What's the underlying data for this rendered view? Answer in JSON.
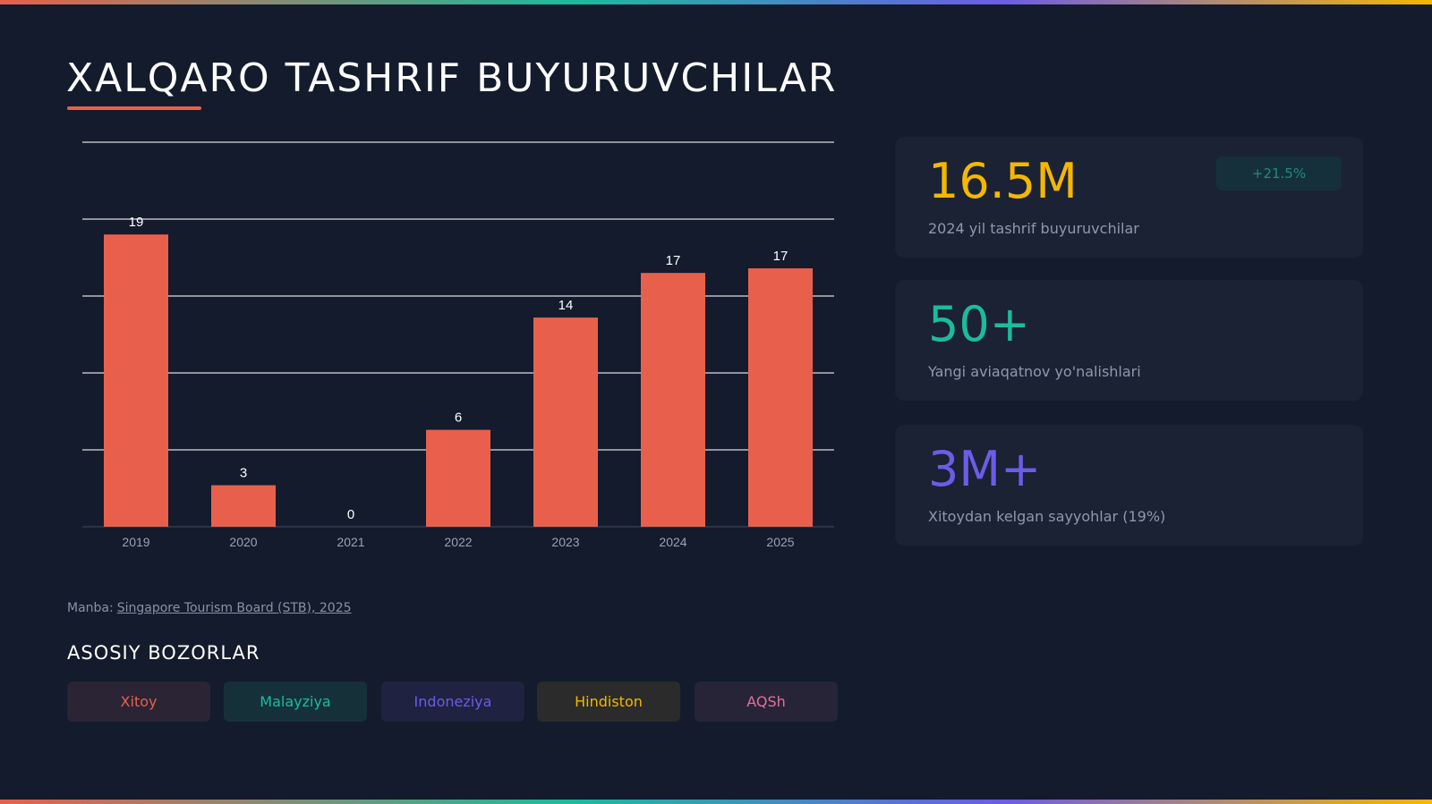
{
  "title": "XALQARO TASHRIF BUYURUVCHILAR",
  "chart_data": {
    "type": "bar",
    "categories": [
      "2019",
      "2020",
      "2021",
      "2022",
      "2023",
      "2024",
      "2025"
    ],
    "values": [
      19,
      2.7,
      0,
      6.3,
      13.6,
      16.5,
      16.8
    ],
    "value_labels": [
      "19",
      "3",
      "0",
      "6",
      "14",
      "17",
      "17"
    ],
    "color": "#e8604c",
    "ylim": [
      0,
      25
    ],
    "yticks": [
      0,
      5,
      10,
      15,
      20,
      25
    ],
    "grid": true
  },
  "stats": [
    {
      "value": "16.5M",
      "label": "2024 yil tashrif buyuruvchilar",
      "badge": "+21.5%"
    },
    {
      "value": "50+",
      "label": "Yangi aviaqatnov yo'nalishlari"
    },
    {
      "value": "3M+",
      "label": "Xitoydan kelgan sayyohlar (19%)"
    }
  ],
  "source": {
    "prefix": "Manba:",
    "link": "Singapore Tourism Board (STB), 2025"
  },
  "markets": {
    "title": "ASOSIY BOZORLAR",
    "items": [
      "Xitoy",
      "Malayziya",
      "Indoneziya",
      "Hindiston",
      "AQSh"
    ]
  }
}
